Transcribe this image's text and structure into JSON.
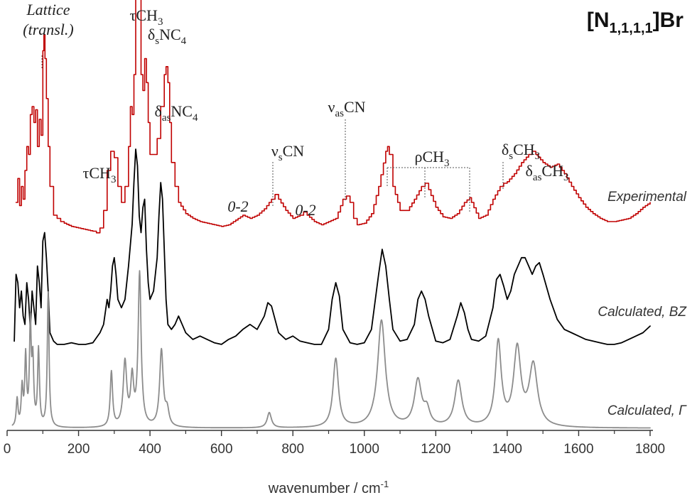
{
  "chart_data": {
    "type": "line",
    "title_main": "[N",
    "title_sub": "1,1,1,1",
    "title_end": "]Br",
    "xlabel": "wavenumber / cm",
    "xlabel_sup": "-1",
    "xlim": [
      0,
      1800
    ],
    "x_ticks": [
      "0",
      "200",
      "400",
      "600",
      "800",
      "1000",
      "1200",
      "1400",
      "1600",
      "1800"
    ],
    "x_tick_values": [
      0,
      200,
      400,
      600,
      800,
      1000,
      1200,
      1400,
      1600,
      1800
    ],
    "y_axis_visible": false,
    "grid": false,
    "series": [
      {
        "name": "Experimental",
        "color": "#c00000",
        "x": [
          25,
          30,
          35,
          40,
          45,
          50,
          55,
          60,
          65,
          70,
          75,
          80,
          85,
          90,
          95,
          100,
          103,
          106,
          110,
          115,
          120,
          130,
          140,
          150,
          160,
          180,
          200,
          220,
          240,
          250,
          260,
          270,
          280,
          290,
          300,
          310,
          320,
          330,
          340,
          345,
          350,
          355,
          360,
          365,
          370,
          375,
          380,
          385,
          390,
          395,
          400,
          410,
          420,
          430,
          440,
          445,
          450,
          455,
          460,
          470,
          480,
          500,
          520,
          540,
          560,
          580,
          600,
          620,
          640,
          660,
          680,
          700,
          720,
          740,
          750,
          760,
          780,
          800,
          820,
          830,
          840,
          860,
          880,
          900,
          920,
          940,
          950,
          960,
          970,
          980,
          1000,
          1020,
          1040,
          1060,
          1065,
          1070,
          1080,
          1100,
          1120,
          1140,
          1160,
          1170,
          1180,
          1200,
          1220,
          1240,
          1260,
          1280,
          1295,
          1300,
          1320,
          1340,
          1360,
          1380,
          1390,
          1400,
          1420,
          1440,
          1460,
          1470,
          1480,
          1500,
          1520,
          1540,
          1560,
          1580,
          1600,
          1620,
          1640,
          1660,
          1680,
          1700,
          1720,
          1740,
          1760,
          1780,
          1800
        ],
        "y": [
          0.2,
          0.35,
          0.18,
          0.3,
          0.22,
          0.4,
          0.55,
          0.5,
          0.75,
          0.8,
          0.7,
          0.78,
          0.55,
          0.72,
          0.62,
          1.15,
          1.25,
          1.1,
          0.85,
          0.55,
          0.3,
          0.12,
          0.1,
          0.08,
          0.07,
          0.05,
          0.04,
          0.03,
          0.02,
          0.01,
          0.04,
          0.15,
          0.4,
          0.52,
          0.48,
          0.3,
          0.2,
          0.3,
          0.55,
          0.8,
          0.75,
          1.0,
          1.6,
          1.8,
          1.55,
          1.0,
          0.9,
          1.1,
          0.95,
          0.7,
          0.5,
          0.5,
          0.6,
          0.8,
          1.0,
          1.05,
          0.95,
          0.7,
          0.45,
          0.3,
          0.2,
          0.13,
          0.1,
          0.08,
          0.07,
          0.06,
          0.05,
          0.06,
          0.09,
          0.12,
          0.1,
          0.12,
          0.16,
          0.22,
          0.25,
          0.22,
          0.15,
          0.1,
          0.12,
          0.14,
          0.12,
          0.08,
          0.06,
          0.08,
          0.1,
          0.22,
          0.24,
          0.2,
          0.1,
          0.06,
          0.07,
          0.13,
          0.3,
          0.52,
          0.55,
          0.5,
          0.3,
          0.15,
          0.15,
          0.22,
          0.3,
          0.32,
          0.28,
          0.17,
          0.11,
          0.1,
          0.13,
          0.2,
          0.23,
          0.2,
          0.1,
          0.12,
          0.22,
          0.3,
          0.32,
          0.33,
          0.38,
          0.45,
          0.5,
          0.52,
          0.5,
          0.45,
          0.42,
          0.44,
          0.38,
          0.3,
          0.23,
          0.17,
          0.13,
          0.1,
          0.08,
          0.08,
          0.09,
          0.1,
          0.13,
          0.17,
          0.2
        ]
      },
      {
        "name": "Calculated, BZ",
        "color": "#000000",
        "x": [
          20,
          25,
          30,
          35,
          40,
          45,
          50,
          55,
          60,
          65,
          70,
          75,
          80,
          85,
          90,
          95,
          100,
          105,
          110,
          115,
          120,
          130,
          140,
          160,
          180,
          200,
          220,
          240,
          260,
          270,
          280,
          285,
          290,
          295,
          300,
          305,
          310,
          320,
          330,
          340,
          350,
          355,
          360,
          365,
          370,
          375,
          380,
          385,
          390,
          395,
          400,
          410,
          420,
          425,
          430,
          435,
          440,
          445,
          450,
          460,
          470,
          480,
          490,
          500,
          520,
          540,
          560,
          580,
          600,
          620,
          640,
          660,
          680,
          700,
          720,
          730,
          740,
          760,
          780,
          800,
          820,
          840,
          860,
          880,
          900,
          910,
          920,
          930,
          940,
          960,
          980,
          1000,
          1020,
          1040,
          1050,
          1060,
          1070,
          1080,
          1100,
          1120,
          1140,
          1150,
          1160,
          1170,
          1180,
          1200,
          1220,
          1240,
          1260,
          1270,
          1280,
          1290,
          1300,
          1320,
          1340,
          1360,
          1370,
          1380,
          1390,
          1400,
          1410,
          1420,
          1440,
          1450,
          1460,
          1470,
          1480,
          1490,
          1500,
          1520,
          1540,
          1560,
          1580,
          1600,
          1620,
          1640,
          1660,
          1680,
          1700,
          1720,
          1740,
          1760,
          1780,
          1800
        ],
        "y": [
          0.05,
          0.45,
          0.4,
          0.25,
          0.35,
          0.2,
          0.15,
          0.4,
          0.3,
          0.12,
          0.35,
          0.25,
          0.15,
          0.5,
          0.4,
          0.25,
          0.65,
          0.7,
          0.55,
          0.35,
          0.1,
          0.05,
          0.03,
          0.03,
          0.04,
          0.03,
          0.03,
          0.04,
          0.1,
          0.15,
          0.3,
          0.25,
          0.35,
          0.5,
          0.55,
          0.45,
          0.3,
          0.25,
          0.3,
          0.5,
          0.75,
          1.0,
          1.2,
          1.1,
          0.8,
          0.7,
          0.85,
          0.9,
          0.6,
          0.4,
          0.3,
          0.35,
          0.55,
          0.8,
          1.0,
          0.9,
          0.6,
          0.3,
          0.15,
          0.12,
          0.15,
          0.2,
          0.15,
          0.1,
          0.06,
          0.08,
          0.06,
          0.04,
          0.03,
          0.06,
          0.08,
          0.12,
          0.15,
          0.12,
          0.2,
          0.28,
          0.26,
          0.1,
          0.06,
          0.08,
          0.05,
          0.04,
          0.03,
          0.03,
          0.12,
          0.3,
          0.4,
          0.32,
          0.12,
          0.04,
          0.03,
          0.04,
          0.12,
          0.45,
          0.6,
          0.5,
          0.3,
          0.12,
          0.05,
          0.06,
          0.15,
          0.3,
          0.35,
          0.3,
          0.2,
          0.05,
          0.04,
          0.06,
          0.2,
          0.28,
          0.22,
          0.12,
          0.06,
          0.05,
          0.08,
          0.25,
          0.42,
          0.45,
          0.38,
          0.3,
          0.35,
          0.45,
          0.55,
          0.55,
          0.5,
          0.45,
          0.5,
          0.52,
          0.45,
          0.3,
          0.18,
          0.12,
          0.1,
          0.08,
          0.06,
          0.05,
          0.04,
          0.03,
          0.03,
          0.04,
          0.06,
          0.08,
          0.1,
          0.14
        ]
      },
      {
        "name": "Calculated, Γ",
        "color": "#8c8c8c",
        "peaks": [
          {
            "x": 28,
            "h": 0.18,
            "w": 3
          },
          {
            "x": 42,
            "h": 0.25,
            "w": 3
          },
          {
            "x": 52,
            "h": 0.45,
            "w": 3
          },
          {
            "x": 65,
            "h": 0.65,
            "w": 3
          },
          {
            "x": 72,
            "h": 0.4,
            "w": 3
          },
          {
            "x": 88,
            "h": 0.5,
            "w": 3
          },
          {
            "x": 115,
            "h": 0.88,
            "w": 3
          },
          {
            "x": 292,
            "h": 0.36,
            "w": 4
          },
          {
            "x": 330,
            "h": 0.42,
            "w": 6
          },
          {
            "x": 350,
            "h": 0.3,
            "w": 5
          },
          {
            "x": 371,
            "h": 1.0,
            "w": 5
          },
          {
            "x": 432,
            "h": 0.5,
            "w": 6
          },
          {
            "x": 448,
            "h": 0.1,
            "w": 6
          },
          {
            "x": 734,
            "h": 0.1,
            "w": 7
          },
          {
            "x": 920,
            "h": 0.45,
            "w": 9
          },
          {
            "x": 1048,
            "h": 0.7,
            "w": 13
          },
          {
            "x": 1150,
            "h": 0.3,
            "w": 12
          },
          {
            "x": 1175,
            "h": 0.1,
            "w": 10
          },
          {
            "x": 1263,
            "h": 0.3,
            "w": 12
          },
          {
            "x": 1375,
            "h": 0.55,
            "w": 10
          },
          {
            "x": 1428,
            "h": 0.5,
            "w": 12
          },
          {
            "x": 1473,
            "h": 0.4,
            "w": 14
          }
        ]
      }
    ],
    "annotations": [
      {
        "text": "Lattice",
        "italic": true
      },
      {
        "text": "(transl.)",
        "italic": true
      },
      {
        "text": "τCH",
        "sub": "3"
      },
      {
        "text": "δ",
        "sub": "s",
        "after": "NC",
        "sub2": "4"
      },
      {
        "text": "τCH",
        "sub": "3"
      },
      {
        "text": "δ",
        "sub": "as",
        "after": "NC",
        "sub2": "4"
      },
      {
        "text": "ν",
        "sub": "s",
        "after": "CN"
      },
      {
        "text": "ν",
        "sub": "as",
        "after": "CN"
      },
      {
        "text": "ρCH",
        "sub": "3"
      },
      {
        "text": "δ",
        "sub": "s",
        "after": "CH",
        "sub2": "3"
      },
      {
        "text": "δ",
        "sub": "as",
        "after": "CH",
        "sub2": "3"
      },
      {
        "text": "0-2",
        "italic": true
      },
      {
        "text": "0-2",
        "italic": true
      }
    ],
    "series_labels": [
      "Experimental",
      "Calculated, BZ",
      "Calculated, Γ"
    ]
  }
}
